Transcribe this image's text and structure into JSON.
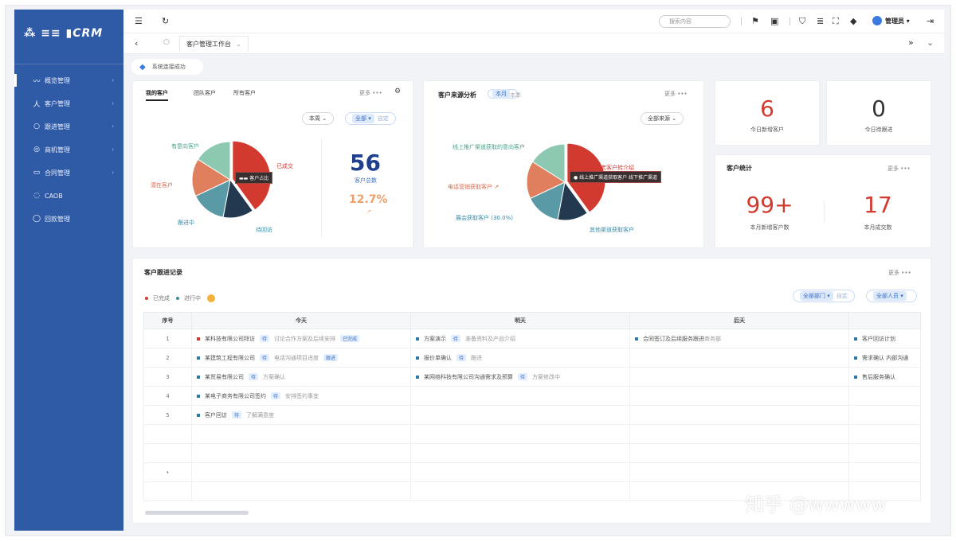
{
  "app": {
    "logo": "⁂ ≡≡ ▮CRM"
  },
  "sidebar": {
    "items": [
      {
        "label": "概览管理",
        "icon": "〰",
        "active": true
      },
      {
        "label": "客户管理",
        "icon": "人"
      },
      {
        "label": "跟进管理",
        "icon": "○"
      },
      {
        "label": "商机管理",
        "icon": "◎"
      },
      {
        "label": "合同管理",
        "icon": "▭"
      },
      {
        "label": "CAOB",
        "icon": "◌"
      },
      {
        "label": "回款管理",
        "icon": "◯"
      }
    ]
  },
  "header": {
    "search_placeholder": "搜索内容",
    "user_name": "管理员 ▾",
    "active_tab": "客户管理工作台",
    "tab_caret": "⌄",
    "collapse_icon": "»",
    "expand_icon": "⌄"
  },
  "filter_chip": "系统连接成功",
  "card1": {
    "tabs": [
      "我的客户",
      "团队客户",
      "所有客户"
    ],
    "more": "更多 •••",
    "select_label": "本周 ⌄",
    "pill_hl": "全部 ▾",
    "pill_ghost": "自定",
    "pie_labels": {
      "top_left": "有意向客户",
      "right": "已成交",
      "left": "潜在客户",
      "bottom_left": "跟进中",
      "bottom_right": "待回访"
    },
    "tooltip": "▬▬ 客户占比",
    "total": "56",
    "total_label": "客户总数",
    "pct": "12.7%",
    "pct_label": "↗"
  },
  "card2": {
    "title": "客户来源分析",
    "badge": "本月",
    "badge2": "本季",
    "more": "更多 •••",
    "select_label": "全部来源 ⌄",
    "pie_labels": {
      "top_left": "线上推广渠道获取的意向客户",
      "right": "老客户转介绍",
      "left": "电话营销获取客户 ↗",
      "bottom_left": "展会获取客户 (30.0%)",
      "bottom_right": "其他渠道获取客户"
    },
    "tooltip": "● 线上推广渠道获取客户 线下推广渠道"
  },
  "stat_cards": [
    {
      "value": "6",
      "label": "今日新增客户",
      "color": "#d33a2f"
    },
    {
      "value": "0",
      "label": "今日待跟进",
      "color": "#333333"
    }
  ],
  "card3": {
    "title": "客户统计",
    "more": "更多 •••",
    "left_value": "99+",
    "left_label": "本月新增客户数",
    "right_value": "17",
    "right_label": "本月成交数"
  },
  "table_card": {
    "title": "客户跟进记录",
    "more": "更多 •••",
    "legend": [
      "已完成",
      "进行中"
    ],
    "filter_left": "全部部门 ▾",
    "filter_left_ghost": "自定",
    "filter_right": "全部人员 ▾",
    "columns": [
      "序号",
      "今天",
      "明天",
      "后天",
      ""
    ],
    "rows": [
      {
        "idx": "1",
        "c1": "某科技有限公司拜访",
        "c1b": "讨论合作方案及后续安排",
        "c1tag": "待",
        "c1c": "已完成",
        "c2": "方案演示",
        "c2b": "准备资料及产品介绍",
        "c2tag": "待",
        "c3": "合同签订及后续服务跟进",
        "c3b": "商务部",
        "c3tag": "",
        "c4": "客户回访计划"
      },
      {
        "idx": "2",
        "c1": "某建筑工程有限公司",
        "c1b": "电话沟通项目进度",
        "c1tag": "待",
        "c1c": "跟进",
        "c2": "报价单确认",
        "c2b": "跟进",
        "c2tag": "待",
        "c3": "",
        "c3b": "",
        "c3tag": "",
        "c4": "需求确认 内部沟通"
      },
      {
        "idx": "3",
        "c1": "某贸易有限公司",
        "c1b": "方案确认",
        "c1tag": "待",
        "c1c": "",
        "c2": "某网络科技有限公司沟通需求及预算",
        "c2b": "方案修改中",
        "c2tag": "待",
        "c3": "",
        "c3b": "",
        "c3tag": "",
        "c4": "售后服务确认"
      },
      {
        "idx": "4",
        "c1": "某电子商务有限公司签约",
        "c1b": "安排签约事宜",
        "c1tag": "待",
        "c1c": "",
        "c2": "",
        "c2b": "",
        "c2tag": "",
        "c3": "",
        "c3b": "",
        "c3tag": "",
        "c4": ""
      },
      {
        "idx": "5",
        "c1": "客户回访",
        "c1b": "了解满意度",
        "c1tag": "待",
        "c1c": "",
        "c2": "",
        "c2b": "",
        "c2tag": "",
        "c3": "",
        "c3b": "",
        "c3tag": "",
        "c4": ""
      },
      {
        "idx": "",
        "c1": "",
        "c1b": "",
        "c1tag": "",
        "c1c": "",
        "c2": "",
        "c2b": "",
        "c2tag": "",
        "c3": "",
        "c3b": "",
        "c3tag": "",
        "c4": ""
      },
      {
        "idx": "",
        "c1": "",
        "c1b": "",
        "c1tag": "",
        "c1c": "",
        "c2": "",
        "c2b": "",
        "c2tag": "",
        "c3": "",
        "c3b": "",
        "c3tag": "",
        "c4": ""
      },
      {
        "idx": "•",
        "c1": "",
        "c1b": "",
        "c1tag": "",
        "c1c": "",
        "c2": "",
        "c2b": "",
        "c2tag": "",
        "c3": "",
        "c3b": "",
        "c3tag": "",
        "c4": ""
      },
      {
        "idx": "",
        "c1": "",
        "c1b": "",
        "c1tag": "",
        "c1c": "",
        "c2": "",
        "c2b": "",
        "c2tag": "",
        "c3": "",
        "c3b": "",
        "c3tag": "",
        "c4": ""
      }
    ]
  },
  "watermark": "知乎 @wwwww",
  "colors": {
    "sidebar": "#2f5aa6",
    "red": "#d33a2f",
    "teal": "#5a9aa6",
    "mint": "#8dc8b0",
    "orange": "#e07f5e",
    "navy": "#23394f",
    "blue": "#3b7be0"
  },
  "pie": [
    {
      "name": "red",
      "value": 40,
      "color": "#d33a2f"
    },
    {
      "name": "navy",
      "value": 13,
      "color": "#23394f"
    },
    {
      "name": "teal",
      "value": 15,
      "color": "#5a9aa6"
    },
    {
      "name": "orange",
      "value": 16,
      "color": "#e07f5e"
    },
    {
      "name": "mint",
      "value": 16,
      "color": "#8dc8b0"
    }
  ]
}
